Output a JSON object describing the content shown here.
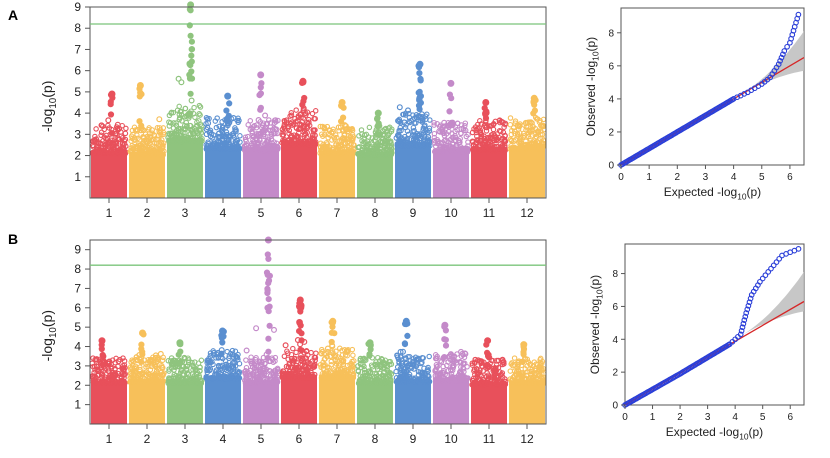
{
  "chart_data": [
    {
      "panel": "A",
      "type": "scatter",
      "subtype": "manhattan",
      "ylabel_main": "-log",
      "ylabel_sub": "10",
      "ylabel_tail": "(p)",
      "ylim": [
        0,
        9
      ],
      "yticks": [
        "1",
        "2",
        "3",
        "4",
        "5",
        "6",
        "7",
        "8",
        "9"
      ],
      "threshold": 8.2,
      "threshold_color": "#7bc47b",
      "chromosomes": [
        "1",
        "2",
        "3",
        "4",
        "5",
        "6",
        "7",
        "8",
        "9",
        "10",
        "11",
        "12"
      ],
      "colors": [
        "#e8505b",
        "#f7c05a",
        "#8fc47e",
        "#5a8fd0",
        "#c48ac9",
        "#e8505b",
        "#f7c05a",
        "#8fc47e",
        "#5a8fd0",
        "#c48ac9",
        "#e8505b",
        "#f7c05a"
      ],
      "max_per_chrom": [
        4.9,
        5.3,
        9.1,
        4.8,
        5.8,
        5.5,
        4.5,
        4.0,
        6.3,
        5.4,
        4.5,
        4.7
      ],
      "body_per_chrom": [
        3.0,
        2.9,
        3.8,
        3.3,
        3.2,
        3.6,
        3.0,
        2.9,
        3.5,
        3.1,
        3.2,
        3.3
      ]
    },
    {
      "panel": "A",
      "type": "scatter",
      "subtype": "qq",
      "xlabel_main": "Expected -log",
      "xlabel_sub": "10",
      "xlabel_tail": "(p)",
      "ylabel_main": "Observed -log",
      "ylabel_sub": "10",
      "ylabel_tail": "(p)",
      "xlim": [
        0,
        6.5
      ],
      "ylim": [
        0,
        9.5
      ],
      "xticks": [
        "0",
        "1",
        "2",
        "3",
        "4",
        "5",
        "6"
      ],
      "yticks": [
        "0",
        "2",
        "4",
        "6",
        "8"
      ],
      "points": [
        [
          0,
          0
        ],
        [
          1,
          1
        ],
        [
          2,
          2
        ],
        [
          3,
          3
        ],
        [
          4,
          4
        ],
        [
          4.5,
          4.4
        ],
        [
          5,
          4.9
        ],
        [
          5.3,
          5.3
        ],
        [
          5.6,
          6.1
        ],
        [
          5.8,
          6.9
        ],
        [
          6.0,
          7.4
        ],
        [
          6.3,
          9.1
        ]
      ],
      "reference_line_end": [
        6.5,
        6.5
      ]
    },
    {
      "panel": "B",
      "type": "scatter",
      "subtype": "manhattan",
      "ylabel_main": "-log",
      "ylabel_sub": "10",
      "ylabel_tail": "(p)",
      "ylim": [
        0,
        9.5
      ],
      "yticks": [
        "1",
        "2",
        "3",
        "4",
        "5",
        "6",
        "7",
        "8",
        "9"
      ],
      "threshold": 8.2,
      "threshold_color": "#7bc47b",
      "chromosomes": [
        "1",
        "2",
        "3",
        "4",
        "5",
        "6",
        "7",
        "8",
        "9",
        "10",
        "11",
        "12"
      ],
      "colors": [
        "#e8505b",
        "#f7c05a",
        "#8fc47e",
        "#5a8fd0",
        "#c48ac9",
        "#e8505b",
        "#f7c05a",
        "#8fc47e",
        "#5a8fd0",
        "#c48ac9",
        "#e8505b",
        "#f7c05a"
      ],
      "max_per_chrom": [
        4.3,
        4.7,
        4.2,
        4.8,
        9.5,
        6.4,
        5.3,
        4.2,
        5.3,
        5.1,
        4.3,
        4.1
      ],
      "body_per_chrom": [
        3.0,
        3.1,
        3.0,
        3.3,
        3.0,
        3.4,
        3.4,
        3.0,
        3.1,
        3.2,
        2.9,
        3.0
      ]
    },
    {
      "panel": "B",
      "type": "scatter",
      "subtype": "qq",
      "xlabel_main": "Expected -log",
      "xlabel_sub": "10",
      "xlabel_tail": "(p)",
      "ylabel_main": "Observed -log",
      "ylabel_sub": "10",
      "ylabel_tail": "(p)",
      "xlim": [
        0,
        6.5
      ],
      "ylim": [
        0,
        9.8
      ],
      "xticks": [
        "0",
        "1",
        "2",
        "3",
        "4",
        "5",
        "6"
      ],
      "yticks": [
        "0",
        "2",
        "4",
        "6",
        "8"
      ],
      "points": [
        [
          0,
          0
        ],
        [
          1,
          0.95
        ],
        [
          2,
          1.9
        ],
        [
          3,
          2.9
        ],
        [
          3.8,
          3.7
        ],
        [
          4.2,
          4.3
        ],
        [
          4.4,
          5.6
        ],
        [
          4.6,
          6.7
        ],
        [
          4.9,
          7.5
        ],
        [
          5.3,
          8.3
        ],
        [
          5.7,
          9.1
        ],
        [
          6.0,
          9.3
        ],
        [
          6.3,
          9.5
        ]
      ],
      "reference_line_end": [
        6.5,
        6.3
      ]
    }
  ],
  "panel_labels": [
    "A",
    "B"
  ]
}
